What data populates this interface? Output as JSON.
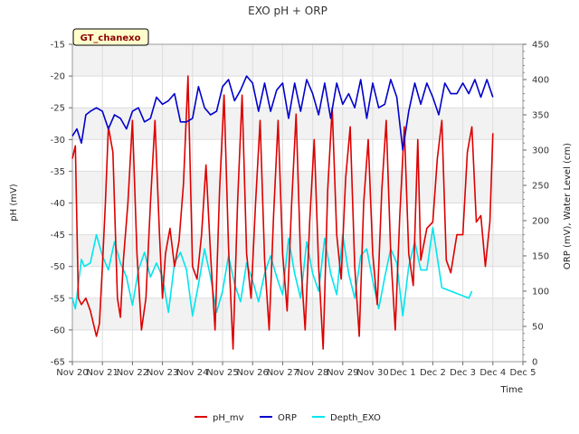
{
  "chart_data": {
    "type": "line",
    "title": "EXO pH + ORP",
    "site_label": "GT_chanexo",
    "xlabel": "Time",
    "ylabel_left": "pH (mV)",
    "ylabel_right": "ORP (mV), Water Level (cm)",
    "x_ticks": [
      "Nov 20",
      "Nov 21",
      "Nov 22",
      "Nov 23",
      "Nov 24",
      "Nov 25",
      "Nov 26",
      "Nov 27",
      "Nov 28",
      "Nov 29",
      "Nov 30",
      "Dec 1",
      "Dec 2",
      "Dec 3",
      "Dec 4",
      "Dec 5"
    ],
    "xlim": [
      0,
      15
    ],
    "ylim_left": [
      -65,
      -15
    ],
    "yticks_left": [
      -15,
      -20,
      -25,
      -30,
      -35,
      -40,
      -45,
      -50,
      -55,
      -60,
      -65
    ],
    "ylim_right": [
      0,
      450
    ],
    "yticks_right": [
      0,
      50,
      100,
      150,
      200,
      250,
      300,
      350,
      400,
      450
    ],
    "grid": true,
    "legend_position": "bottom",
    "series": [
      {
        "name": "pH_mv",
        "axis": "left",
        "color": "#dd0000",
        "x": [
          0.0,
          0.1,
          0.2,
          0.3,
          0.45,
          0.6,
          0.8,
          0.9,
          1.0,
          1.1,
          1.2,
          1.35,
          1.5,
          1.6,
          1.7,
          1.85,
          2.0,
          2.15,
          2.3,
          2.45,
          2.6,
          2.75,
          2.9,
          3.0,
          3.1,
          3.25,
          3.4,
          3.55,
          3.7,
          3.85,
          4.0,
          4.15,
          4.3,
          4.45,
          4.6,
          4.75,
          4.9,
          5.05,
          5.2,
          5.35,
          5.5,
          5.65,
          5.8,
          5.95,
          6.1,
          6.25,
          6.4,
          6.55,
          6.7,
          6.85,
          7.0,
          7.15,
          7.3,
          7.45,
          7.6,
          7.75,
          7.9,
          8.05,
          8.2,
          8.35,
          8.5,
          8.65,
          8.8,
          8.95,
          9.1,
          9.25,
          9.4,
          9.55,
          9.7,
          9.85,
          10.0,
          10.15,
          10.3,
          10.45,
          10.6,
          10.75,
          10.9,
          11.05,
          11.2,
          11.35,
          11.5,
          11.6,
          11.8,
          12.0,
          12.15,
          12.3,
          12.45,
          12.6,
          12.8,
          13.0,
          13.15,
          13.3,
          13.45,
          13.6,
          13.75,
          13.9,
          14.0
        ],
        "y": [
          -33,
          -31,
          -55,
          -56,
          -55,
          -57,
          -61,
          -59,
          -50,
          -40,
          -28,
          -32,
          -55,
          -58,
          -49,
          -40,
          -27,
          -48,
          -60,
          -55,
          -40,
          -27,
          -45,
          -55,
          -48,
          -44,
          -50,
          -46,
          -37,
          -20,
          -50,
          -52,
          -45,
          -34,
          -48,
          -60,
          -38,
          -23,
          -47,
          -63,
          -40,
          -23,
          -48,
          -55,
          -40,
          -27,
          -49,
          -60,
          -42,
          -27,
          -48,
          -57,
          -40,
          -26,
          -49,
          -60,
          -43,
          -30,
          -50,
          -63,
          -38,
          -25,
          -45,
          -52,
          -36,
          -28,
          -50,
          -61,
          -40,
          -30,
          -48,
          -56,
          -38,
          -27,
          -48,
          -60,
          -42,
          -28,
          -48,
          -53,
          -30,
          -49,
          -44,
          -43,
          -33,
          -27,
          -49,
          -51,
          -45,
          -45,
          -32,
          -28,
          -43,
          -42,
          -50,
          -43,
          -29
        ]
      },
      {
        "name": "ORP",
        "axis": "right",
        "color": "#0000cc",
        "x": [
          0.0,
          0.15,
          0.3,
          0.45,
          0.6,
          0.8,
          1.0,
          1.2,
          1.4,
          1.6,
          1.8,
          2.0,
          2.2,
          2.4,
          2.6,
          2.8,
          3.0,
          3.2,
          3.4,
          3.6,
          3.8,
          4.0,
          4.2,
          4.4,
          4.6,
          4.8,
          5.0,
          5.2,
          5.4,
          5.6,
          5.8,
          6.0,
          6.2,
          6.4,
          6.6,
          6.8,
          7.0,
          7.2,
          7.4,
          7.6,
          7.8,
          8.0,
          8.2,
          8.4,
          8.6,
          8.8,
          9.0,
          9.2,
          9.4,
          9.6,
          9.8,
          10.0,
          10.2,
          10.4,
          10.6,
          10.8,
          11.0,
          11.2,
          11.4,
          11.6,
          11.8,
          12.0,
          12.2,
          12.4,
          12.6,
          12.8,
          13.0,
          13.2,
          13.4,
          13.6,
          13.8,
          14.0
        ],
        "y": [
          320,
          330,
          310,
          350,
          355,
          360,
          355,
          330,
          350,
          345,
          330,
          355,
          360,
          340,
          345,
          375,
          365,
          370,
          380,
          340,
          340,
          345,
          390,
          360,
          350,
          355,
          390,
          400,
          370,
          385,
          405,
          395,
          355,
          395,
          355,
          385,
          395,
          345,
          395,
          355,
          400,
          380,
          350,
          395,
          345,
          395,
          365,
          380,
          360,
          400,
          345,
          395,
          360,
          365,
          400,
          375,
          300,
          355,
          395,
          365,
          395,
          375,
          350,
          395,
          380,
          380,
          395,
          380,
          400,
          375,
          400,
          375
        ]
      },
      {
        "name": "Depth_EXO",
        "axis": "right",
        "color": "#00e5ee",
        "x": [
          0.0,
          0.1,
          0.2,
          0.3,
          0.4,
          0.6,
          0.8,
          1.0,
          1.2,
          1.4,
          1.6,
          1.8,
          2.0,
          2.2,
          2.4,
          2.6,
          2.8,
          3.0,
          3.2,
          3.4,
          3.6,
          3.8,
          4.0,
          4.2,
          4.4,
          4.6,
          4.8,
          5.0,
          5.2,
          5.4,
          5.6,
          5.8,
          6.0,
          6.2,
          6.4,
          6.6,
          6.8,
          7.0,
          7.2,
          7.4,
          7.6,
          7.8,
          8.0,
          8.2,
          8.4,
          8.6,
          8.8,
          9.0,
          9.2,
          9.4,
          9.6,
          9.8,
          10.0,
          10.2,
          10.4,
          10.6,
          10.8,
          11.0,
          11.2,
          11.4,
          11.6,
          11.8,
          12.0,
          12.3,
          12.6,
          12.9,
          13.2,
          13.3
        ],
        "y": [
          90,
          75,
          110,
          145,
          135,
          140,
          180,
          150,
          130,
          170,
          140,
          120,
          80,
          130,
          155,
          120,
          140,
          120,
          70,
          140,
          155,
          130,
          65,
          110,
          160,
          120,
          70,
          100,
          150,
          110,
          85,
          140,
          115,
          85,
          125,
          150,
          120,
          95,
          175,
          125,
          90,
          170,
          125,
          100,
          175,
          125,
          95,
          180,
          125,
          90,
          150,
          160,
          115,
          75,
          120,
          160,
          140,
          65,
          135,
          170,
          130,
          130,
          190,
          105,
          100,
          95,
          90,
          100
        ]
      }
    ]
  }
}
